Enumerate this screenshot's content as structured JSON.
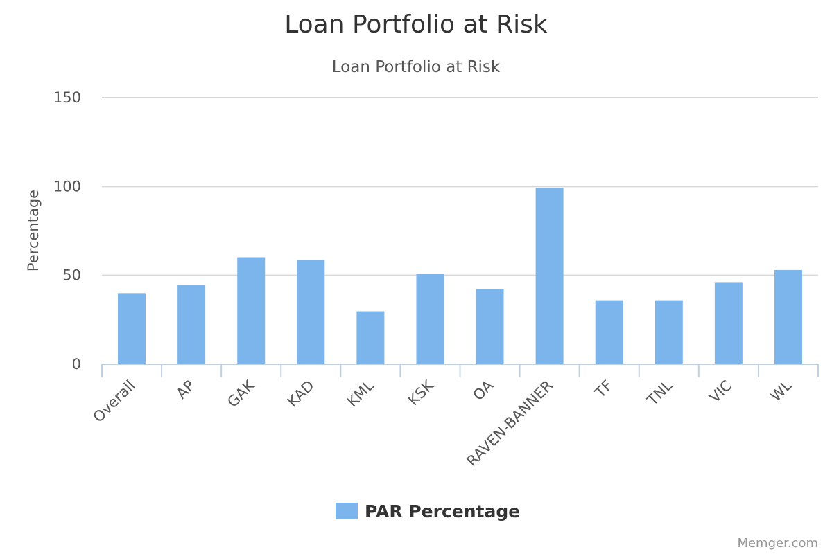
{
  "chart_data": {
    "type": "bar",
    "title": "Loan Portfolio at Risk",
    "subtitle": "Loan Portfolio at Risk",
    "xlabel": "",
    "ylabel": "Percentage",
    "ylim": [
      0,
      150
    ],
    "yticks": [
      0,
      50,
      100,
      150
    ],
    "grid": true,
    "legend_position": "bottom-center",
    "categories": [
      "Overall",
      "AP",
      "GAK",
      "KAD",
      "KML",
      "KSK",
      "OA",
      "RAVEN-BANNER",
      "TF",
      "TNL",
      "VIC",
      "WL"
    ],
    "series": [
      {
        "name": "PAR Percentage",
        "color": "#7cb5ec",
        "values": [
          40,
          44.6,
          60.2,
          58.5,
          29.8,
          50.8,
          42.3,
          99.3,
          36,
          36,
          46.2,
          53
        ]
      }
    ]
  },
  "credit": "Memger.com"
}
